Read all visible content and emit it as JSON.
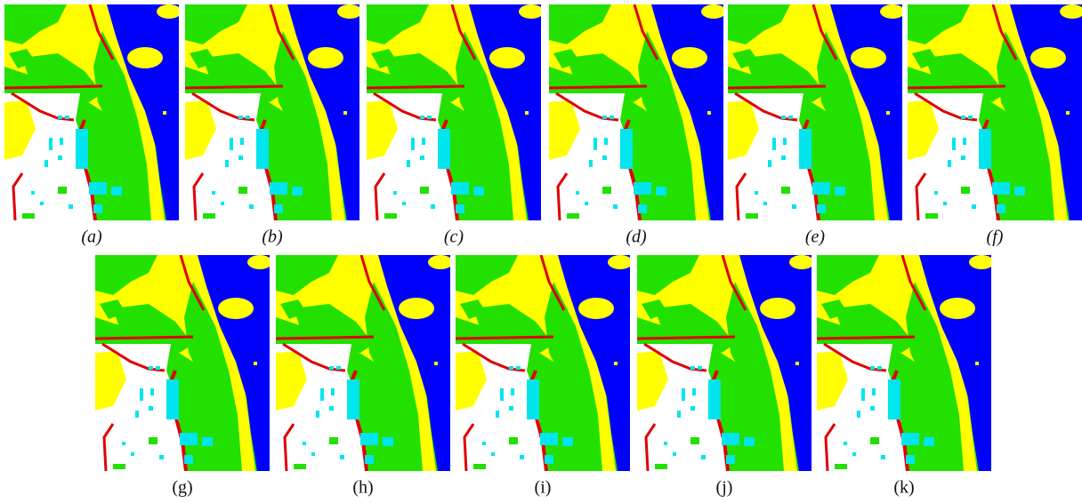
{
  "panels": [
    {
      "label": "(a)"
    },
    {
      "label": "(b)"
    },
    {
      "label": "(c)"
    },
    {
      "label": "(d)"
    },
    {
      "label": "(e)"
    },
    {
      "label": "(f)"
    },
    {
      "label": "(g)"
    },
    {
      "label": "(h)"
    },
    {
      "label": "(i)"
    },
    {
      "label": "(j)"
    },
    {
      "label": "(k)"
    }
  ]
}
